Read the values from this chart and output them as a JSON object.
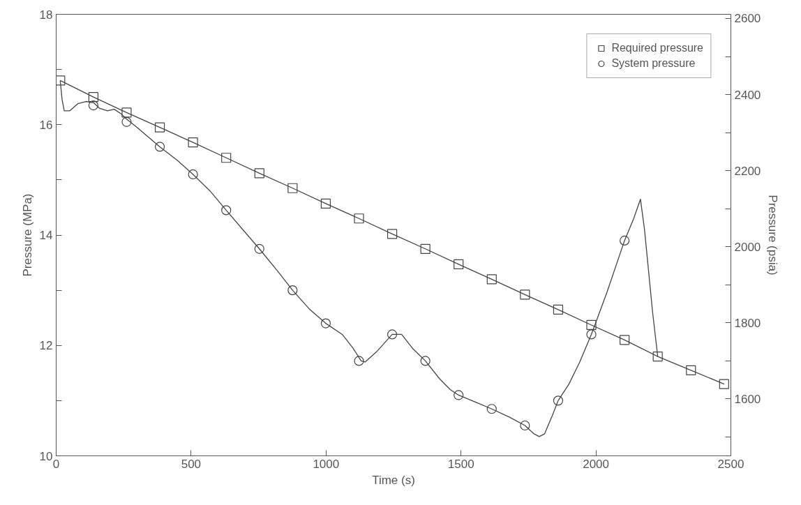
{
  "chart_data": {
    "type": "line",
    "xlabel": "Time (s)",
    "ylabel": "Pressure (MPa)",
    "y2label": "Pressure (psia)",
    "xlim": [
      0,
      2500
    ],
    "xticks": [
      0,
      500,
      1000,
      1500,
      2000,
      2500
    ],
    "ylim": [
      10,
      18
    ],
    "yticks": [
      10,
      {
        "value": 11,
        "label": null
      },
      12,
      {
        "value": 13,
        "label": null
      },
      14,
      {
        "value": 15,
        "label": null
      },
      16,
      {
        "value": 17,
        "label": null
      },
      18
    ],
    "y2lim": [
      1450,
      2611
    ],
    "y2ticks": [
      {
        "value": 1500,
        "label": null
      },
      1600,
      {
        "value": 1700,
        "label": null
      },
      1800,
      {
        "value": 1900,
        "label": null
      },
      2000,
      {
        "value": 2100,
        "label": null
      },
      2200,
      {
        "value": 2300,
        "label": null
      },
      2400,
      {
        "value": 2500,
        "label": null
      },
      2600
    ],
    "grid": false,
    "legend": "top right",
    "series": [
      {
        "name": "Required pressure",
        "marker": "square",
        "color": "#444444",
        "x": [
          15,
          138,
          261,
          384,
          507,
          630,
          753,
          876,
          999,
          1122,
          1245,
          1368,
          1491,
          1614,
          1737,
          1860,
          1983,
          2106,
          2229,
          2352,
          2475
        ],
        "values": [
          16.8,
          16.5,
          16.22,
          15.95,
          15.68,
          15.4,
          15.12,
          14.85,
          14.57,
          14.3,
          14.02,
          13.75,
          13.47,
          13.2,
          12.92,
          12.65,
          12.37,
          12.1,
          11.8,
          11.55,
          11.3
        ]
      },
      {
        "marker": "none",
        "color": "#444444",
        "x": [
          15,
          22,
          30,
          50,
          80,
          110,
          138,
          160,
          190,
          215,
          240,
          261,
          300,
          384,
          450,
          507,
          570,
          630,
          700,
          753,
          820,
          876,
          940,
          999,
          1060,
          1100,
          1130,
          1145,
          1190,
          1245,
          1280,
          1320,
          1368,
          1420,
          1460,
          1491,
          1550,
          1614,
          1680,
          1737,
          1770,
          1790,
          1810,
          1840,
          1860,
          1900,
          1940,
          1983,
          2040,
          2106,
          2140,
          2165,
          2180,
          2210,
          2229
        ],
        "values": [
          16.8,
          16.45,
          16.25,
          16.25,
          16.38,
          16.42,
          16.4,
          16.3,
          16.25,
          16.28,
          16.2,
          16.1,
          15.95,
          15.6,
          15.35,
          15.1,
          14.8,
          14.45,
          14.05,
          13.75,
          13.35,
          13.0,
          12.65,
          12.4,
          12.2,
          11.95,
          11.72,
          11.7,
          11.9,
          12.2,
          12.2,
          11.95,
          11.72,
          11.4,
          11.2,
          11.1,
          10.98,
          10.85,
          10.7,
          10.55,
          10.4,
          10.35,
          10.4,
          10.75,
          11.0,
          11.3,
          11.7,
          12.2,
          12.95,
          13.9,
          14.3,
          14.65,
          14.1,
          12.6,
          11.8
        ]
      },
      {
        "name": "System pressure",
        "type": "scatter",
        "marker": "circle",
        "color": "#444444",
        "x": [
          138,
          261,
          384,
          507,
          630,
          753,
          876,
          999,
          1122,
          1245,
          1368,
          1491,
          1614,
          1737,
          1860,
          1983,
          2106
        ],
        "values": [
          16.35,
          16.05,
          15.6,
          15.1,
          14.45,
          13.75,
          13.0,
          12.4,
          11.72,
          12.2,
          11.72,
          11.1,
          10.85,
          10.55,
          11.0,
          12.2,
          13.9
        ]
      }
    ]
  }
}
